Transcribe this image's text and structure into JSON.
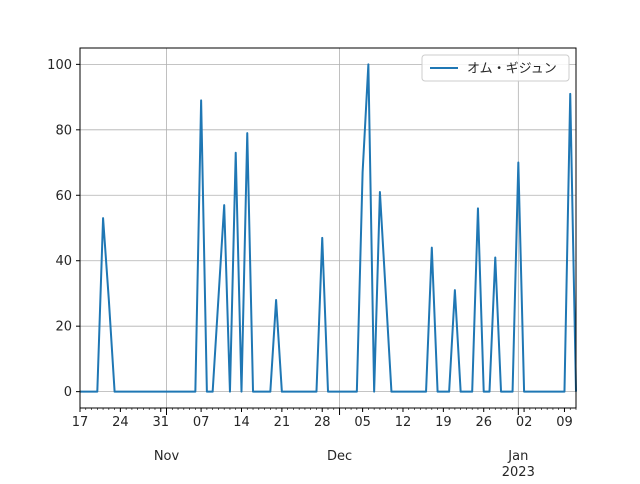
{
  "chart_data": {
    "type": "line",
    "title": "",
    "xlabel": "",
    "ylabel": "",
    "x_start": "2022-10-17",
    "x_range": [
      "2022-10-17",
      "2023-01-11"
    ],
    "ylim": [
      -5,
      105
    ],
    "grid": true,
    "legend_position": "top-right",
    "series": [
      {
        "name": "オム・ギジュン",
        "color": "#1f77b4",
        "points": [
          [
            "2022-10-17",
            0
          ],
          [
            "2022-10-20",
            0
          ],
          [
            "2022-10-21",
            53
          ],
          [
            "2022-10-22",
            28
          ],
          [
            "2022-10-23",
            0
          ],
          [
            "2022-11-06",
            0
          ],
          [
            "2022-11-07",
            89
          ],
          [
            "2022-11-08",
            0
          ],
          [
            "2022-11-09",
            0
          ],
          [
            "2022-11-11",
            57
          ],
          [
            "2022-11-12",
            0
          ],
          [
            "2022-11-13",
            73
          ],
          [
            "2022-11-14",
            0
          ],
          [
            "2022-11-15",
            79
          ],
          [
            "2022-11-16",
            0
          ],
          [
            "2022-11-19",
            0
          ],
          [
            "2022-11-20",
            28
          ],
          [
            "2022-11-21",
            0
          ],
          [
            "2022-11-27",
            0
          ],
          [
            "2022-11-28",
            47
          ],
          [
            "2022-11-29",
            0
          ],
          [
            "2022-12-04",
            0
          ],
          [
            "2022-12-05",
            67
          ],
          [
            "2022-12-06",
            100
          ],
          [
            "2022-12-07",
            0
          ],
          [
            "2022-12-08",
            61
          ],
          [
            "2022-12-10",
            0
          ],
          [
            "2022-12-16",
            0
          ],
          [
            "2022-12-17",
            44
          ],
          [
            "2022-12-18",
            0
          ],
          [
            "2022-12-20",
            0
          ],
          [
            "2022-12-21",
            31
          ],
          [
            "2022-12-22",
            0
          ],
          [
            "2022-12-24",
            0
          ],
          [
            "2022-12-25",
            56
          ],
          [
            "2022-12-26",
            0
          ],
          [
            "2022-12-27",
            0
          ],
          [
            "2022-12-28",
            41
          ],
          [
            "2022-12-29",
            0
          ],
          [
            "2022-12-31",
            0
          ],
          [
            "2023-01-01",
            70
          ],
          [
            "2023-01-02",
            0
          ],
          [
            "2023-01-09",
            0
          ],
          [
            "2023-01-10",
            91
          ],
          [
            "2023-01-11",
            0
          ]
        ]
      }
    ],
    "y_ticks": [
      0,
      20,
      40,
      60,
      80,
      100
    ],
    "x_ticks": [
      {
        "date": "2022-10-17",
        "label": "17"
      },
      {
        "date": "2022-10-24",
        "label": "24"
      },
      {
        "date": "2022-10-31",
        "label": "31"
      },
      {
        "date": "2022-11-07",
        "label": "07"
      },
      {
        "date": "2022-11-14",
        "label": "14"
      },
      {
        "date": "2022-11-21",
        "label": "21"
      },
      {
        "date": "2022-11-28",
        "label": "28"
      },
      {
        "date": "2022-12-05",
        "label": "05"
      },
      {
        "date": "2022-12-12",
        "label": "12"
      },
      {
        "date": "2022-12-19",
        "label": "19"
      },
      {
        "date": "2022-12-26",
        "label": "26"
      },
      {
        "date": "2023-01-02",
        "label": "02"
      },
      {
        "date": "2023-01-09",
        "label": "09"
      }
    ],
    "month_labels": [
      {
        "date": "2022-11-01",
        "label": "Nov",
        "year": ""
      },
      {
        "date": "2022-12-01",
        "label": "Dec",
        "year": ""
      },
      {
        "date": "2023-01-01",
        "label": "Jan",
        "year": "2023"
      }
    ]
  }
}
